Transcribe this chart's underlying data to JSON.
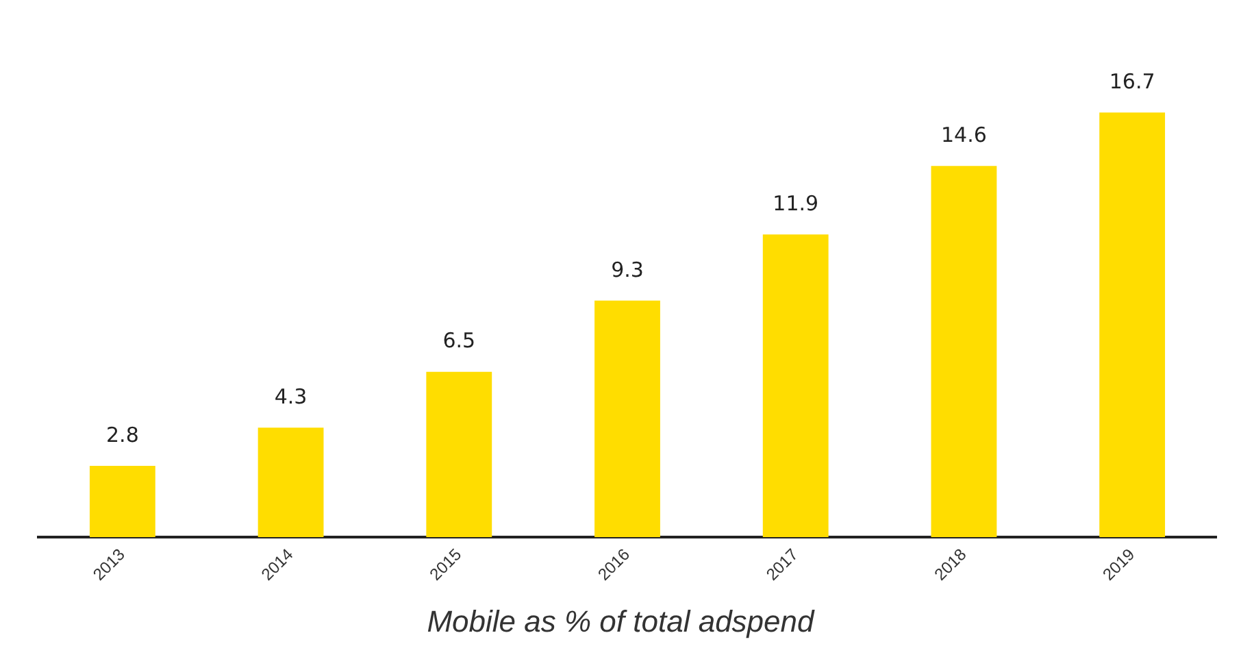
{
  "chart_data": {
    "type": "bar",
    "title": "Mobile as % of total adspend",
    "categories": [
      "2013",
      "2014",
      "2015",
      "2016",
      "2017",
      "2018",
      "2019"
    ],
    "values": [
      2.8,
      4.3,
      6.5,
      9.3,
      11.9,
      14.6,
      16.7
    ],
    "color": "#ffdd00",
    "data_labels": true,
    "grid": false,
    "legend": false
  }
}
